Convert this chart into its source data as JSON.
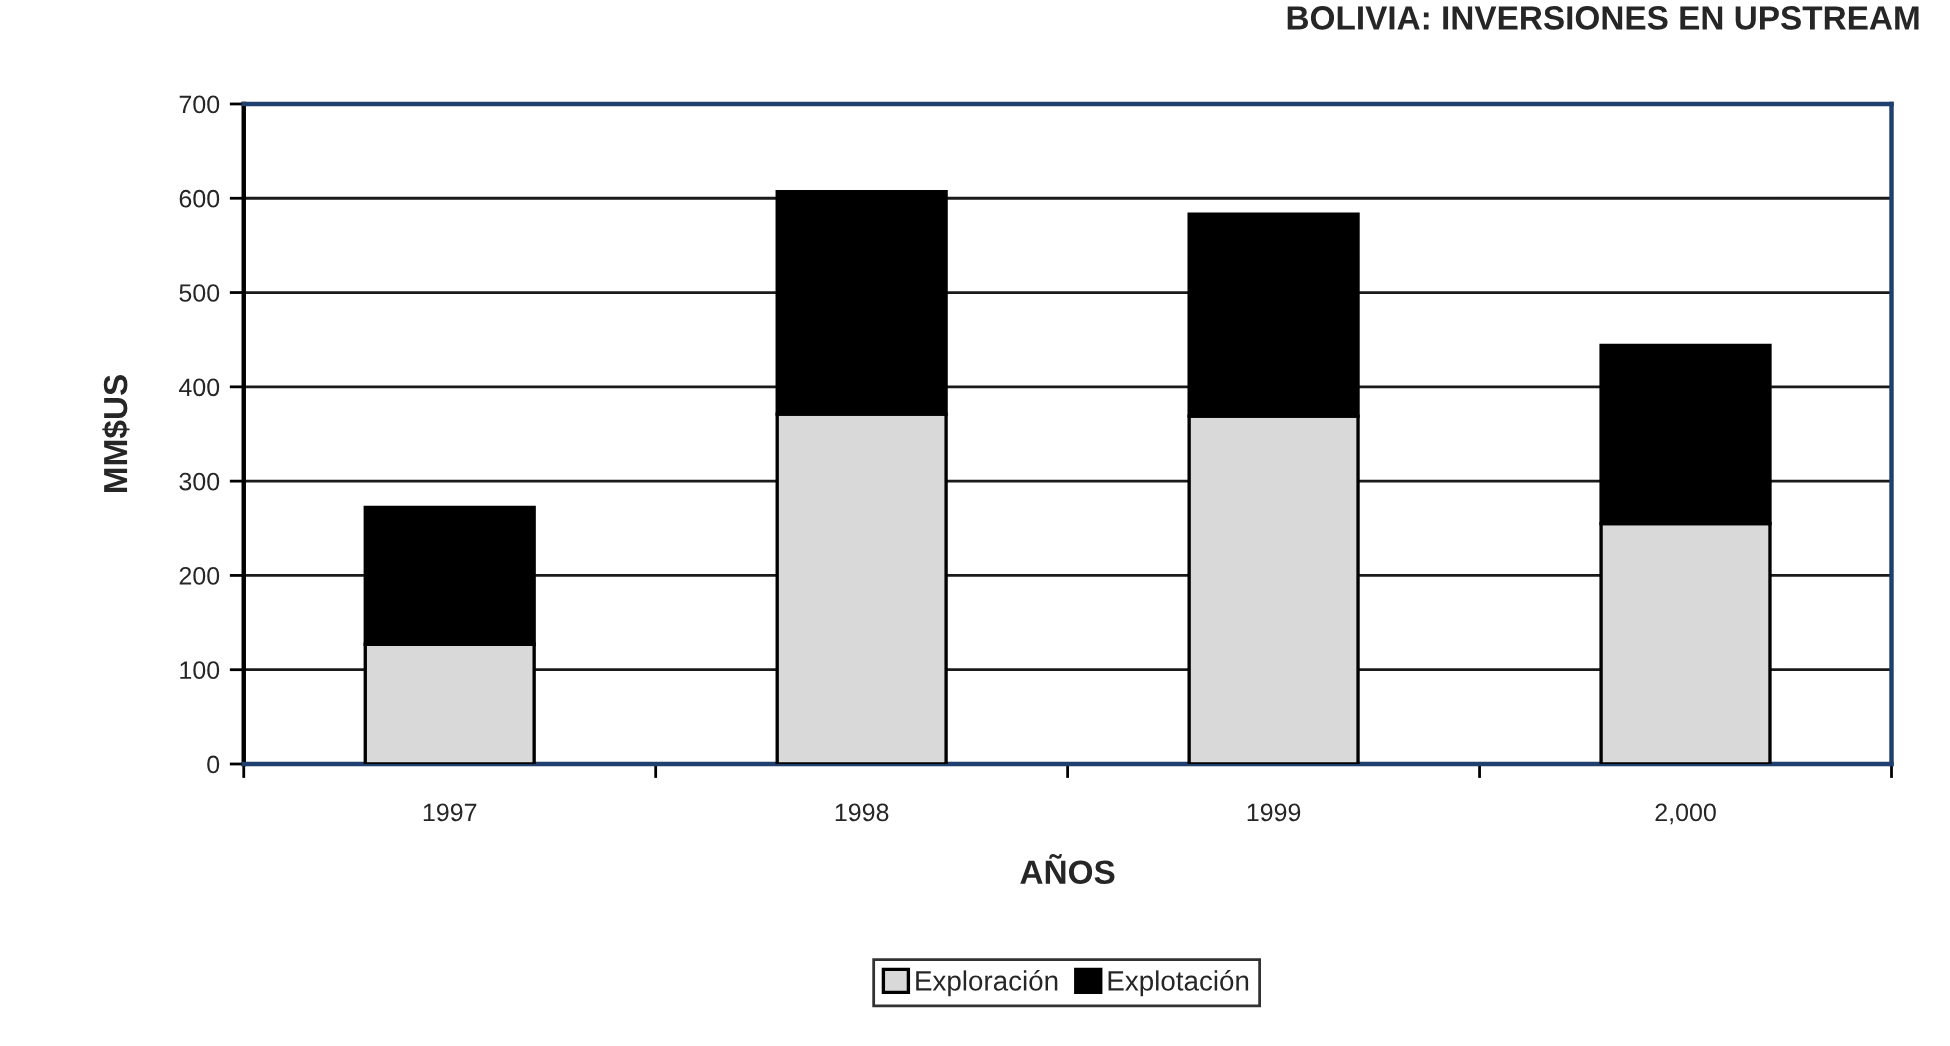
{
  "chart_data": {
    "type": "bar",
    "title": "BOLIVIA: INVERSIONES EN UPSTREAM",
    "xlabel": "AÑOS",
    "ylabel": "MM$US",
    "categories": [
      "1997",
      "1998",
      "1999",
      "2,000"
    ],
    "stacked": true,
    "series": [
      {
        "name": "Exploración",
        "color": "#d9d9d9",
        "values": [
          127,
          371,
          369,
          255
        ]
      },
      {
        "name": "Explotación",
        "color": "#000000",
        "values": [
          145,
          236,
          214,
          189
        ]
      }
    ],
    "ylim": [
      0,
      700
    ],
    "yticks": [
      0,
      100,
      200,
      300,
      400,
      500,
      600,
      700
    ],
    "grid": "y",
    "legend": "bottom"
  }
}
